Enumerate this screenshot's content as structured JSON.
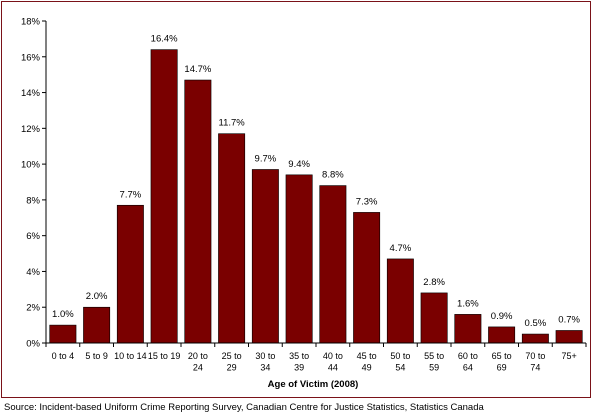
{
  "chart_data": {
    "type": "bar",
    "categories": [
      [
        "0 to 4"
      ],
      [
        "5 to 9"
      ],
      [
        "10 to 14"
      ],
      [
        "15 to 19"
      ],
      [
        "20 to",
        "24"
      ],
      [
        "25 to",
        "29"
      ],
      [
        "30 to",
        "34"
      ],
      [
        "35 to",
        "39"
      ],
      [
        "40 to",
        "44"
      ],
      [
        "45 to",
        "49"
      ],
      [
        "50 to",
        "54"
      ],
      [
        "55 to",
        "59"
      ],
      [
        "60 to",
        "64"
      ],
      [
        "65 to",
        "69"
      ],
      [
        "70 to",
        "74"
      ],
      [
        "75+"
      ]
    ],
    "values": [
      1.0,
      2.0,
      7.7,
      16.4,
      14.7,
      11.7,
      9.7,
      9.4,
      8.8,
      7.3,
      4.7,
      2.8,
      1.6,
      0.9,
      0.5,
      0.7
    ],
    "value_labels": [
      "1.0%",
      "2.0%",
      "7.7%",
      "16.4%",
      "14.7%",
      "11.7%",
      "9.7%",
      "9.4%",
      "8.8%",
      "7.3%",
      "4.7%",
      "2.8%",
      "1.6%",
      "0.9%",
      "0.5%",
      "0.7%"
    ],
    "yticks": [
      "0%",
      "2%",
      "4%",
      "6%",
      "8%",
      "10%",
      "12%",
      "14%",
      "16%",
      "18%"
    ],
    "ylim": [
      0,
      18
    ],
    "xlabel": "Age of Victim (2008)",
    "ylabel": "",
    "title": "",
    "grid": false,
    "legend": "none",
    "bar_color": "#7a0000",
    "border_color": "#7a1218"
  },
  "source": "Source:  Incident-based Uniform Crime Reporting Survey, Canadian Centre for Justice Statistics, Statistics Canada"
}
